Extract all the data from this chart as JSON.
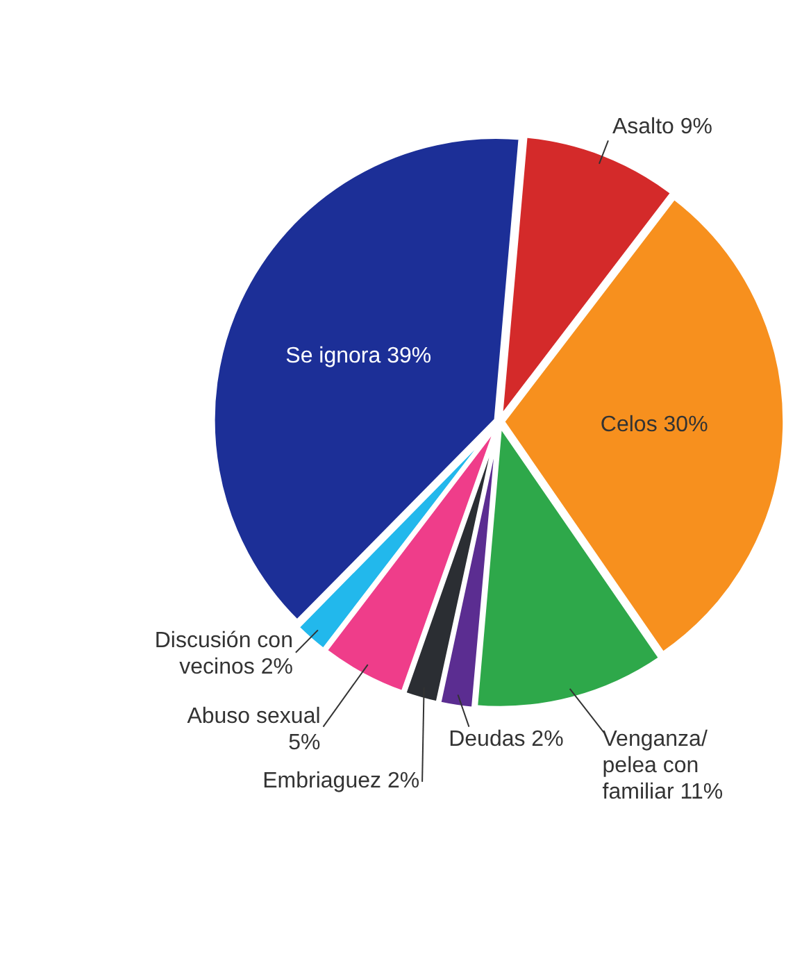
{
  "chart_data": {
    "type": "pie",
    "categories": [
      "Asalto",
      "Celos",
      "Venganza/ pelea con familiar",
      "Deudas",
      "Embriaguez",
      "Abuso sexual",
      "Discusión con vecinos",
      "Se ignora"
    ],
    "values": [
      9,
      30,
      11,
      2,
      2,
      5,
      2,
      39
    ],
    "value_labels": [
      "9%",
      "30%",
      "11%",
      "2%",
      "2%",
      "5%",
      "2%",
      "39%"
    ],
    "colors": [
      "#d42a2a",
      "#f7901e",
      "#2ea84a",
      "#5b2d91",
      "#2b2e33",
      "#ef3d8a",
      "#22b8ec",
      "#1c2f97"
    ],
    "legend": false
  }
}
